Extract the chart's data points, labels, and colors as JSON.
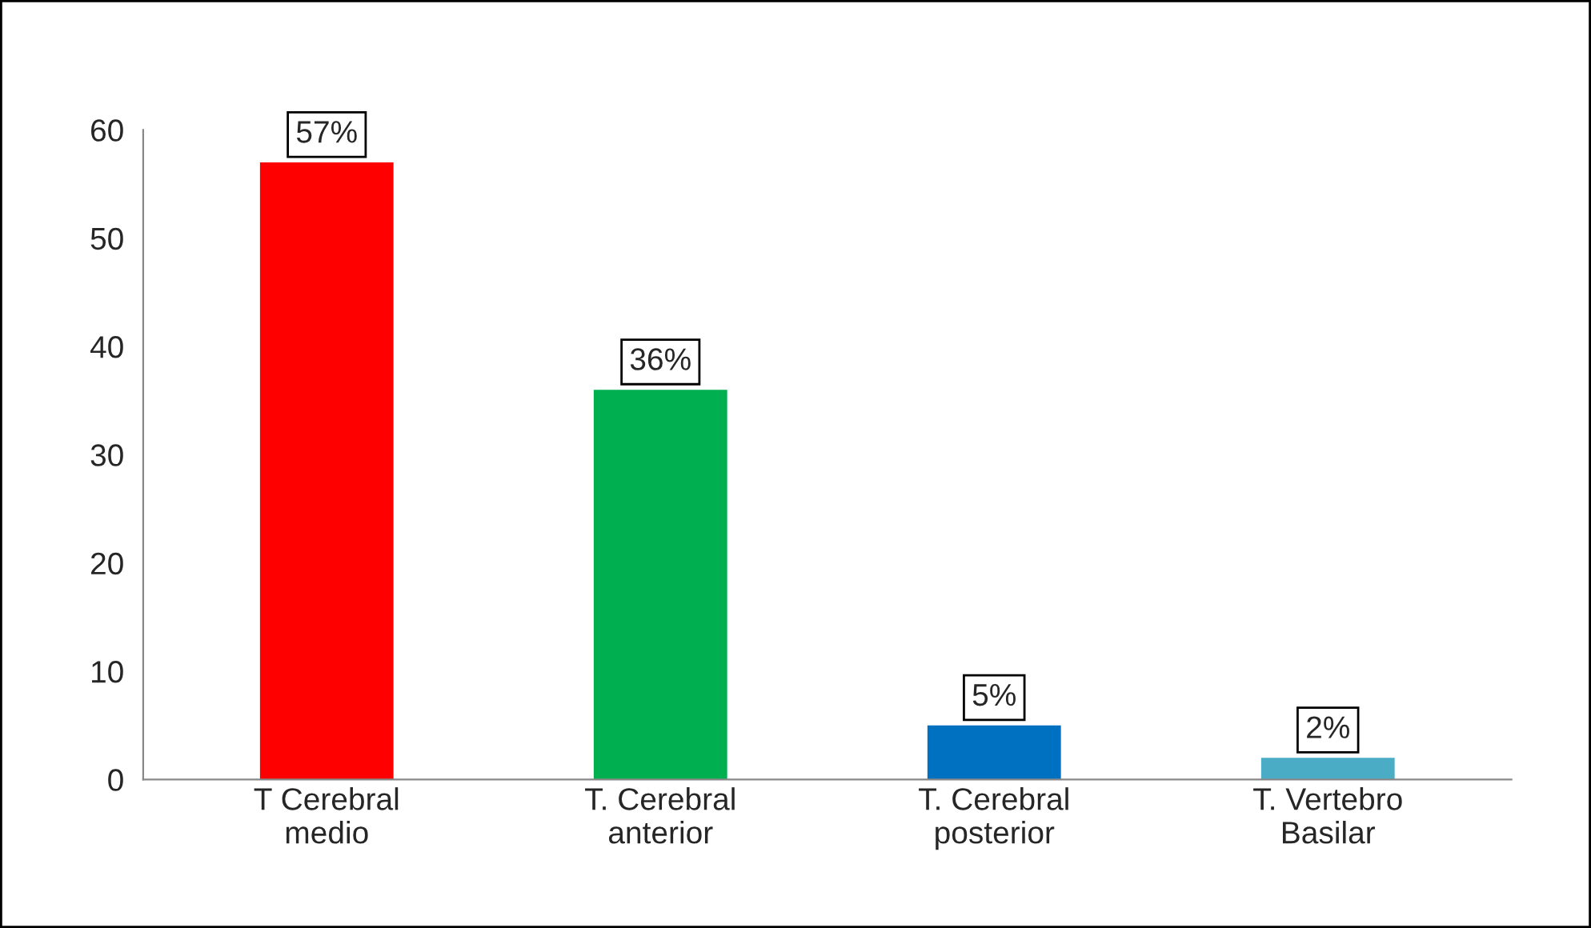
{
  "chart_data": {
    "type": "bar",
    "categories": [
      "T Cerebral\nmedio",
      "T. Cerebral\nanterior",
      "T. Cerebral\nposterior",
      "T. Vertebro\nBasilar"
    ],
    "values": [
      57,
      36,
      5,
      2
    ],
    "colors": [
      "#ff0000",
      "#00b050",
      "#0070c0",
      "#4bacc6"
    ],
    "value_labels": [
      "57%",
      "36%",
      "5%",
      "2%"
    ],
    "ylim": [
      0,
      60
    ],
    "yticks": [
      0,
      10,
      20,
      30,
      40,
      50,
      60
    ],
    "grid": false,
    "legend": false
  }
}
